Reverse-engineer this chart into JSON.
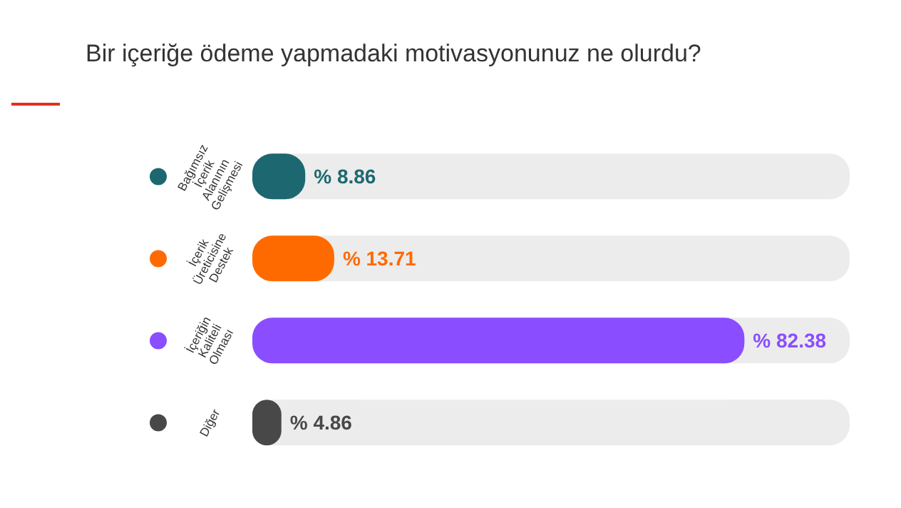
{
  "chart_data": {
    "type": "bar",
    "orientation": "horizontal",
    "title": "Bir içeriğe ödeme yapmadaki motivasyonunuz ne olurdu?",
    "categories": [
      "Bağımsız İçerik Alanının Gelişmesi",
      "İçerik Üreticisine Destek",
      "İçeriğin Kaliteli Olması",
      "Diğer"
    ],
    "values": [
      8.86,
      13.71,
      82.38,
      4.86
    ],
    "colors": [
      "#1d6870",
      "#ff6a00",
      "#8a4dff",
      "#484848"
    ],
    "value_labels": [
      "% 8.86",
      "% 13.71",
      "% 82.38",
      "% 4.86"
    ],
    "xlim": [
      0,
      100
    ],
    "tick_labels": "y"
  }
}
